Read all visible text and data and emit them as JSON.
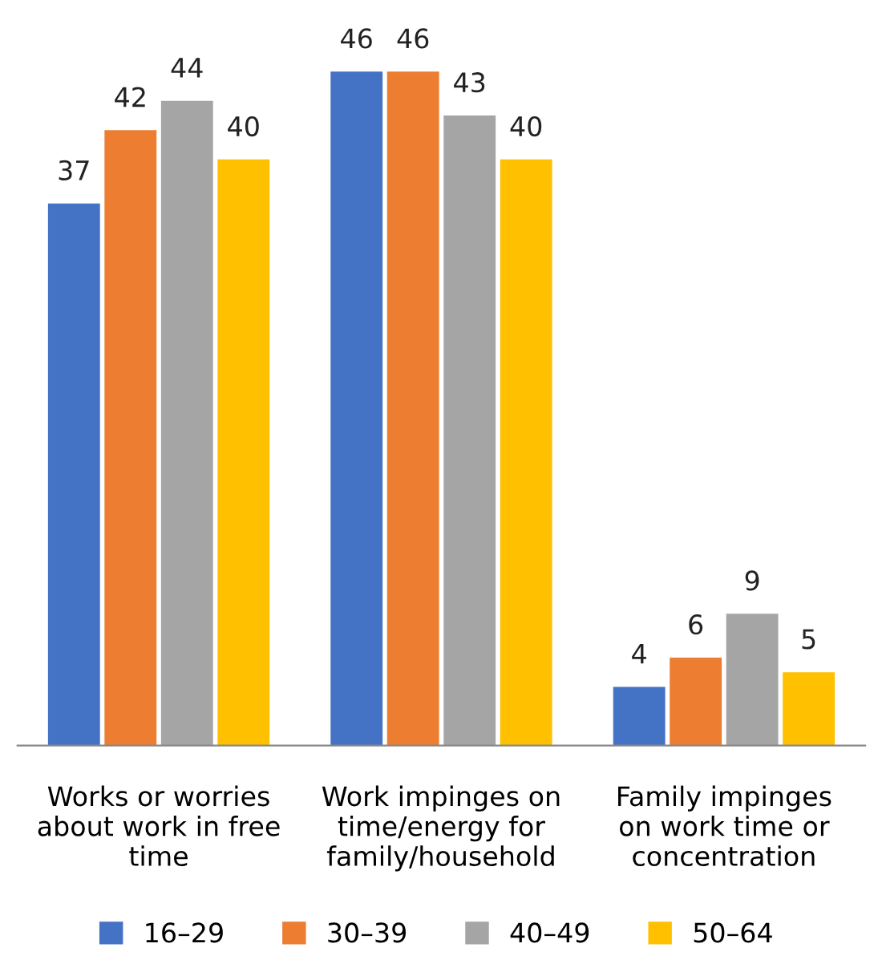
{
  "chart_data": {
    "type": "bar",
    "categories": [
      "Works or worries\nabout work in free\ntime",
      "Work impinges on\ntime/energy for\nfamily/household",
      "Family impinges\non work time or\nconcentration"
    ],
    "series": [
      {
        "name": "16–29",
        "color": "#4472c4",
        "values": [
          37,
          46,
          4
        ]
      },
      {
        "name": "30–39",
        "color": "#ed7d31",
        "values": [
          42,
          46,
          6
        ]
      },
      {
        "name": "40–49",
        "color": "#a5a5a5",
        "values": [
          44,
          43,
          9
        ]
      },
      {
        "name": "50–64",
        "color": "#ffc000",
        "values": [
          40,
          40,
          5
        ]
      }
    ],
    "data_labels": true,
    "legend": "bottom",
    "grid": false
  }
}
